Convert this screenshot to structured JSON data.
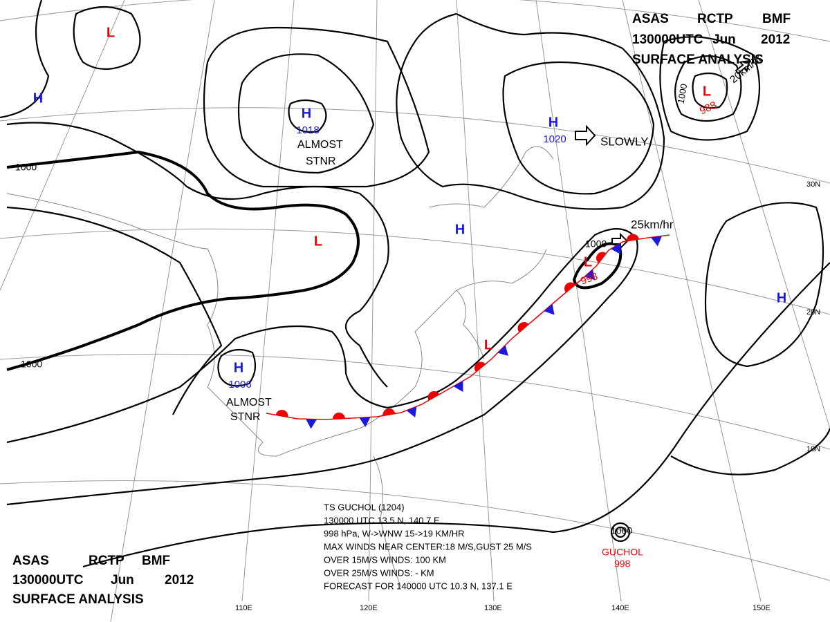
{
  "title": {
    "agency": "ASAS",
    "station": "RCTP",
    "code": "BMF",
    "time": "130000UTC",
    "month": "Jun",
    "year": "2012",
    "product": "SURFACE ANALYSIS"
  },
  "pressure_systems": [
    {
      "symbol": "L"
    },
    {
      "symbol": "H"
    },
    {
      "symbol": "H",
      "pressure": 1018
    },
    {
      "symbol": "H",
      "pressure": 1020
    },
    {
      "symbol": "L",
      "pressure": 988
    },
    {
      "symbol": "L"
    },
    {
      "symbol": "H"
    },
    {
      "symbol": "L",
      "pressure": 998
    },
    {
      "symbol": "L"
    },
    {
      "symbol": "H",
      "pressure": 1006
    },
    {
      "symbol": "H"
    }
  ],
  "typhoon": {
    "name": "GUCHOL",
    "pressure": 998,
    "isobar": 1000
  },
  "annotations": [
    "ALMOST",
    "STNR",
    "SLOWLY",
    "25km/hr",
    "20km/hr",
    "ALMOST",
    "STNR"
  ],
  "isobar_labels": [
    1000,
    1000,
    1000,
    1000
  ],
  "latitude_labels": [
    "30N",
    "20N",
    "10N"
  ],
  "longitude_labels": [
    "110E",
    "120E",
    "130E",
    "140E",
    "150E"
  ],
  "typhoon_bulletin": [
    "TS  GUCHOL (1204)",
    "130000 UTC  13.5 N, 140.7 E",
    "998 hPa, W->WNW  15->19 KM/HR",
    "MAX WINDS NEAR CENTER:18 M/S,GUST 25 M/S",
    "OVER 15M/S WINDS: 100 KM",
    "OVER 25M/S WINDS: - KM",
    "FORECAST FOR 140000 UTC 10.3 N, 137.1 E"
  ]
}
